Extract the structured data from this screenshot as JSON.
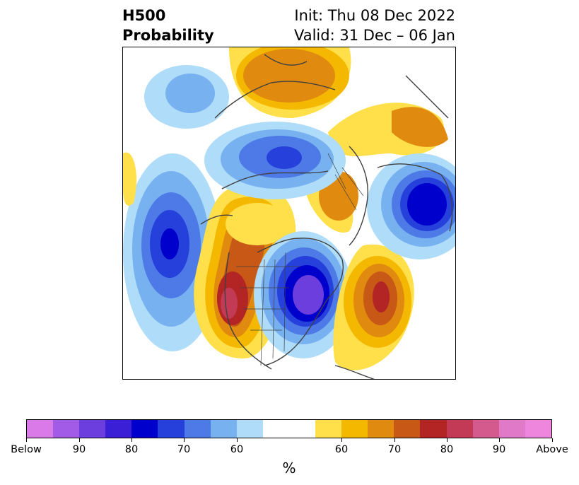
{
  "title": {
    "left_line1": "H500",
    "left_line2": "Probability",
    "right_line1": "Init: Thu 08 Dec 2022",
    "right_line2": "Valid: 31 Dec – 06 Jan"
  },
  "colorbar": {
    "unit": "%",
    "colors": [
      "#d97ae8",
      "#a25be6",
      "#6d3ede",
      "#3a1fd6",
      "#0000cc",
      "#2640db",
      "#4d7ae6",
      "#77b1f0",
      "#aedcf9",
      "#ffffff",
      "#ffffff",
      "#ffe04a",
      "#f5b800",
      "#e08a10",
      "#c85816",
      "#b32424",
      "#c23a55",
      "#d45a8e",
      "#e07ac8",
      "#ee86dd"
    ],
    "labels": [
      {
        "text": "Below"
      },
      {
        "text": "90"
      },
      {
        "text": "80"
      },
      {
        "text": "70"
      },
      {
        "text": "60"
      },
      {
        "text": "60"
      },
      {
        "text": "70"
      },
      {
        "text": "80"
      },
      {
        "text": "90"
      },
      {
        "text": "Above"
      }
    ]
  },
  "map": {
    "colors": {
      "below_light": "#aedcf9",
      "below_mid": "#77b1f0",
      "below_strong": "#4d7ae6",
      "below_deep": "#0000cc",
      "below_max": "#6d3ede",
      "above_light": "#ffe04a",
      "above_mid": "#f5b800",
      "above_strong": "#e08a10",
      "above_deep": "#c85816",
      "above_max": "#b32424",
      "above_peak": "#d45a8e",
      "land_outline": "#404040"
    }
  }
}
